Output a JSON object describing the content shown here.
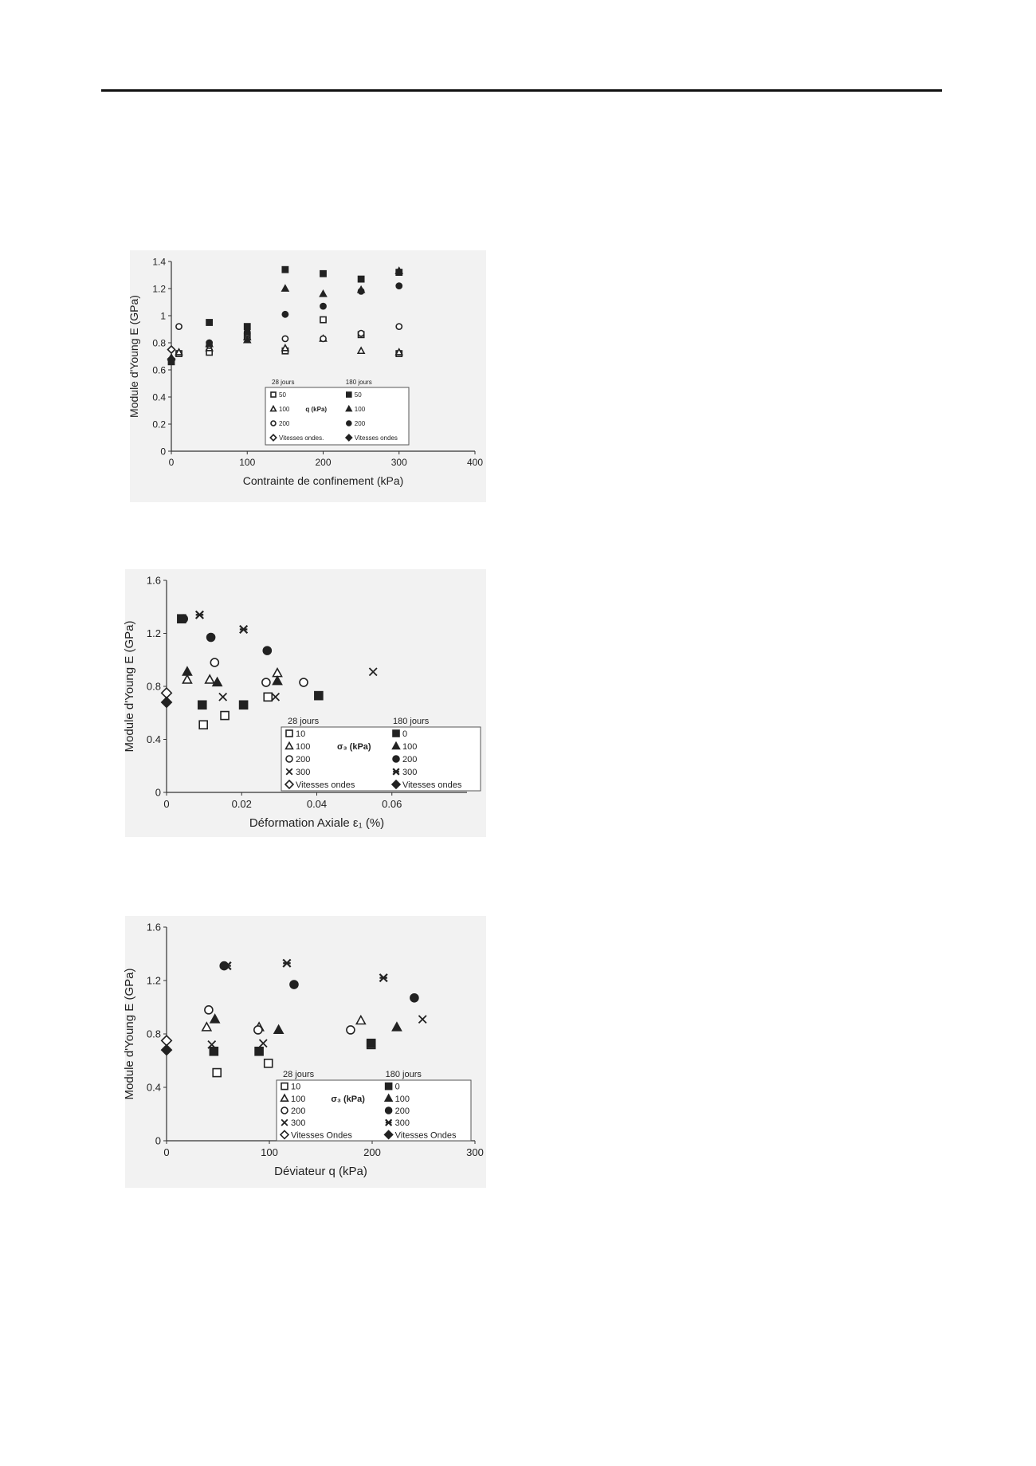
{
  "chart_data": [
    {
      "type": "scatter",
      "title": "",
      "xlabel": "Contrainte de confinement (kPa)",
      "ylabel": "Module d'Young     E (GPa)",
      "xlim": [
        0,
        400
      ],
      "ylim": [
        0,
        1.4
      ],
      "xticks": [
        0,
        100,
        200,
        300,
        400
      ],
      "yticks": [
        0,
        0.2,
        0.4,
        0.6,
        0.8,
        1,
        1.2,
        1.4
      ],
      "ytick_labels": [
        "0",
        "0.2",
        "0.4",
        "0.6",
        "0.8",
        "1",
        "1.2",
        "1.4"
      ],
      "legend": {
        "position": "bottom-right",
        "group_left": "28 jours",
        "group_right": "180 jours",
        "param_label": "q (kPa)"
      },
      "series": [
        {
          "name": "50",
          "group": "28 jours",
          "marker": "square",
          "filled": false,
          "color": "#222222",
          "points": [
            [
              10,
              0.72
            ],
            [
              50,
              0.73
            ],
            [
              100,
              0.85
            ],
            [
              150,
              0.74
            ],
            [
              200,
              0.97
            ],
            [
              250,
              0.86
            ],
            [
              300,
              0.72
            ]
          ]
        },
        {
          "name": "100",
          "group": "28 jours",
          "marker": "triangle",
          "filled": false,
          "color": "#222222",
          "points": [
            [
              10,
              0.73
            ],
            [
              50,
              0.76
            ],
            [
              100,
              0.84
            ],
            [
              150,
              0.76
            ],
            [
              200,
              0.83
            ],
            [
              250,
              0.74
            ],
            [
              300,
              0.73
            ]
          ]
        },
        {
          "name": "200",
          "group": "28 jours",
          "marker": "circle",
          "filled": false,
          "color": "#222222",
          "points": [
            [
              10,
              0.92
            ],
            [
              50,
              0.78
            ],
            [
              100,
              0.87
            ],
            [
              150,
              0.83
            ],
            [
              200,
              0.83
            ],
            [
              250,
              0.87
            ],
            [
              300,
              0.92
            ]
          ]
        },
        {
          "name": "Vitesses ondes.",
          "group": "28 jours",
          "marker": "diamond",
          "filled": false,
          "color": "#222222",
          "points": [
            [
              0,
              0.75
            ]
          ]
        },
        {
          "name": "50",
          "group": "180 jours",
          "marker": "square",
          "filled": true,
          "color": "#222222",
          "points": [
            [
              0,
              0.66
            ],
            [
              50,
              0.95
            ],
            [
              100,
              0.92
            ],
            [
              150,
              1.34
            ],
            [
              200,
              1.31
            ],
            [
              250,
              1.27
            ],
            [
              300,
              1.32
            ]
          ]
        },
        {
          "name": "100",
          "group": "180 jours",
          "marker": "triangle",
          "filled": true,
          "color": "#222222",
          "points": [
            [
              0,
              0.69
            ],
            [
              50,
              0.79
            ],
            [
              100,
              0.82
            ],
            [
              150,
              1.2
            ],
            [
              200,
              1.16
            ],
            [
              250,
              1.19
            ],
            [
              300,
              1.33
            ]
          ]
        },
        {
          "name": "200",
          "group": "180 jours",
          "marker": "circle",
          "filled": true,
          "color": "#222222",
          "points": [
            [
              50,
              0.8
            ],
            [
              100,
              0.88
            ],
            [
              150,
              1.01
            ],
            [
              200,
              1.07
            ],
            [
              250,
              1.18
            ],
            [
              300,
              1.22
            ]
          ]
        },
        {
          "name": "Vitesses ondes",
          "group": "180 jours",
          "marker": "diamond",
          "filled": true,
          "color": "#222222",
          "points": [
            [
              0,
              0.68
            ]
          ]
        }
      ]
    },
    {
      "type": "scatter",
      "title": "",
      "xlabel": "Déformation Axiale ε₁ (%)",
      "ylabel": "Module d'Young     E (GPa)",
      "xlim": [
        0,
        0.08
      ],
      "ylim": [
        0,
        1.6
      ],
      "xticks": [
        0,
        0.02,
        0.04,
        0.06
      ],
      "yticks": [
        0,
        0.4,
        0.8,
        1.2,
        1.6
      ],
      "ytick_labels": [
        "0",
        "0.4",
        "0.8",
        "1.2",
        "1.6"
      ],
      "legend": {
        "position": "bottom-right",
        "group_left": "28 jours",
        "group_right": "180 jours",
        "param_label": "σ₃ (kPa)"
      },
      "series": [
        {
          "name": "10",
          "group": "28 jours",
          "marker": "square",
          "filled": false,
          "color": "#222222",
          "points": [
            [
              0.0098,
              0.51
            ],
            [
              0.0155,
              0.58
            ],
            [
              0.027,
              0.72
            ]
          ]
        },
        {
          "name": "100",
          "group": "28 jours",
          "marker": "triangle",
          "filled": false,
          "color": "#222222",
          "points": [
            [
              0.0055,
              0.85
            ],
            [
              0.0115,
              0.85
            ],
            [
              0.0295,
              0.9
            ]
          ]
        },
        {
          "name": "200",
          "group": "28 jours",
          "marker": "circle",
          "filled": false,
          "color": "#222222",
          "points": [
            [
              0.0128,
              0.98
            ],
            [
              0.0265,
              0.83
            ],
            [
              0.0365,
              0.83
            ]
          ]
        },
        {
          "name": "300",
          "group": "28 jours",
          "marker": "cross",
          "filled": false,
          "color": "#222222",
          "points": [
            [
              0.015,
              0.72
            ],
            [
              0.029,
              0.72
            ],
            [
              0.055,
              0.91
            ]
          ]
        },
        {
          "name": "Vitesses ondes",
          "group": "28 jours",
          "marker": "diamond",
          "filled": false,
          "color": "#222222",
          "points": [
            [
              0,
              0.75
            ]
          ]
        },
        {
          "name": "0",
          "group": "180 jours",
          "marker": "square",
          "filled": true,
          "color": "#222222",
          "points": [
            [
              0.004,
              1.31
            ],
            [
              0.0095,
              0.66
            ],
            [
              0.0205,
              0.66
            ],
            [
              0.0405,
              0.73
            ]
          ]
        },
        {
          "name": "100",
          "group": "180 jours",
          "marker": "triangle",
          "filled": true,
          "color": "#222222",
          "points": [
            [
              0.0055,
              0.91
            ],
            [
              0.0135,
              0.83
            ],
            [
              0.0295,
              0.84
            ]
          ]
        },
        {
          "name": "200",
          "group": "180 jours",
          "marker": "circle",
          "filled": true,
          "color": "#222222",
          "points": [
            [
              0.0045,
              1.31
            ],
            [
              0.0118,
              1.17
            ],
            [
              0.0268,
              1.07
            ]
          ]
        },
        {
          "name": "300",
          "group": "180 jours",
          "marker": "star",
          "filled": true,
          "color": "#222222",
          "points": [
            [
              0.0088,
              1.34
            ],
            [
              0.0205,
              1.23
            ]
          ]
        },
        {
          "name": "Vitesses ondes",
          "group": "180 jours",
          "marker": "diamond",
          "filled": true,
          "color": "#222222",
          "points": [
            [
              0,
              0.68
            ]
          ]
        }
      ]
    },
    {
      "type": "scatter",
      "title": "",
      "xlabel": "Déviateur  q (kPa)",
      "ylabel": "Module d'Young     E (GPa)",
      "xlim": [
        0,
        300
      ],
      "ylim": [
        0,
        1.6
      ],
      "xticks": [
        0,
        100,
        200,
        300
      ],
      "yticks": [
        0,
        0.4,
        0.8,
        1.2,
        1.6
      ],
      "ytick_labels": [
        "0",
        "0.4",
        "0.8",
        "1.2",
        "1.6"
      ],
      "legend": {
        "position": "bottom-right",
        "group_left": "28 jours",
        "group_right": "180 jours",
        "param_label": "σ₃ (kPa)"
      },
      "series": [
        {
          "name": "10",
          "group": "28 jours",
          "marker": "square",
          "filled": false,
          "color": "#222222",
          "points": [
            [
              49,
              0.51
            ],
            [
              99,
              0.58
            ],
            [
              199,
              0.72
            ]
          ]
        },
        {
          "name": "100",
          "group": "28 jours",
          "marker": "triangle",
          "filled": false,
          "color": "#222222",
          "points": [
            [
              39,
              0.85
            ],
            [
              90,
              0.85
            ],
            [
              189,
              0.9
            ]
          ]
        },
        {
          "name": "200",
          "group": "28 jours",
          "marker": "circle",
          "filled": false,
          "color": "#222222",
          "points": [
            [
              41,
              0.98
            ],
            [
              89,
              0.83
            ],
            [
              179,
              0.83
            ]
          ]
        },
        {
          "name": "300",
          "group": "28 jours",
          "marker": "cross",
          "filled": false,
          "color": "#222222",
          "points": [
            [
              44,
              0.72
            ],
            [
              94,
              0.73
            ],
            [
              249,
              0.91
            ]
          ]
        },
        {
          "name": "Vitesses Ondes",
          "group": "28 jours",
          "marker": "diamond",
          "filled": false,
          "color": "#222222",
          "points": [
            [
              0,
              0.75
            ]
          ]
        },
        {
          "name": "0",
          "group": "180 jours",
          "marker": "square",
          "filled": true,
          "color": "#222222",
          "points": [
            [
              46,
              0.67
            ],
            [
              90,
              0.67
            ],
            [
              199,
              0.73
            ]
          ]
        },
        {
          "name": "100",
          "group": "180 jours",
          "marker": "triangle",
          "filled": true,
          "color": "#222222",
          "points": [
            [
              47,
              0.91
            ],
            [
              109,
              0.83
            ],
            [
              224,
              0.85
            ]
          ]
        },
        {
          "name": "200",
          "group": "180 jours",
          "marker": "circle",
          "filled": true,
          "color": "#222222",
          "points": [
            [
              56,
              1.31
            ],
            [
              124,
              1.17
            ],
            [
              241,
              1.07
            ]
          ]
        },
        {
          "name": "300",
          "group": "180 jours",
          "marker": "star",
          "filled": true,
          "color": "#222222",
          "points": [
            [
              59,
              1.31
            ],
            [
              117,
              1.33
            ],
            [
              211,
              1.22
            ]
          ]
        },
        {
          "name": "Vitesses Ondes",
          "group": "180 jours",
          "marker": "diamond",
          "filled": true,
          "color": "#222222",
          "points": [
            [
              0,
              0.68
            ]
          ]
        }
      ]
    }
  ]
}
